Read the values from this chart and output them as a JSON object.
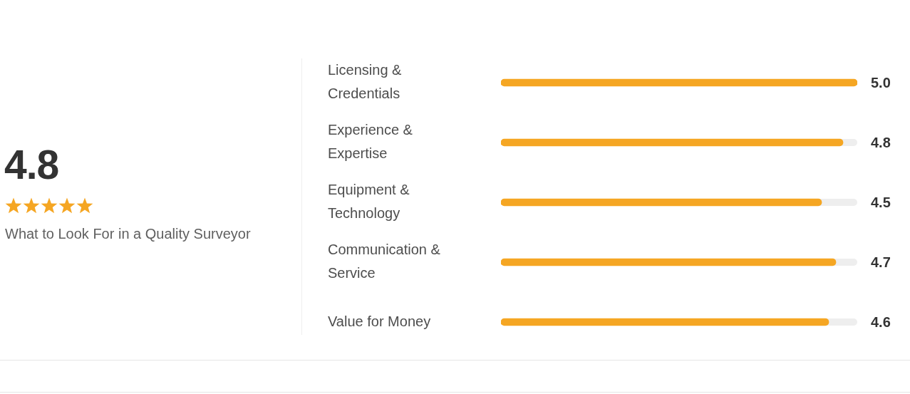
{
  "chart_data": [
    {
      "type": "other",
      "title": "4.8",
      "subtitle": "What to Look For in a Quality Surveyor"
    },
    {
      "type": "bar",
      "orientation": "horizontal",
      "categories": [
        "Licensing & Credentials",
        "Experience & Expertise",
        "Equipment & Technology",
        "Communication & Service",
        "Value for Money"
      ],
      "values": [
        5.0,
        4.8,
        4.5,
        4.7,
        4.6
      ],
      "value_labels": [
        "5.0",
        "4.8",
        "4.5",
        "4.7",
        "4.6"
      ],
      "color": "#f5a623",
      "xlim": [
        0,
        5
      ],
      "tick_labels": "y"
    }
  ]
}
